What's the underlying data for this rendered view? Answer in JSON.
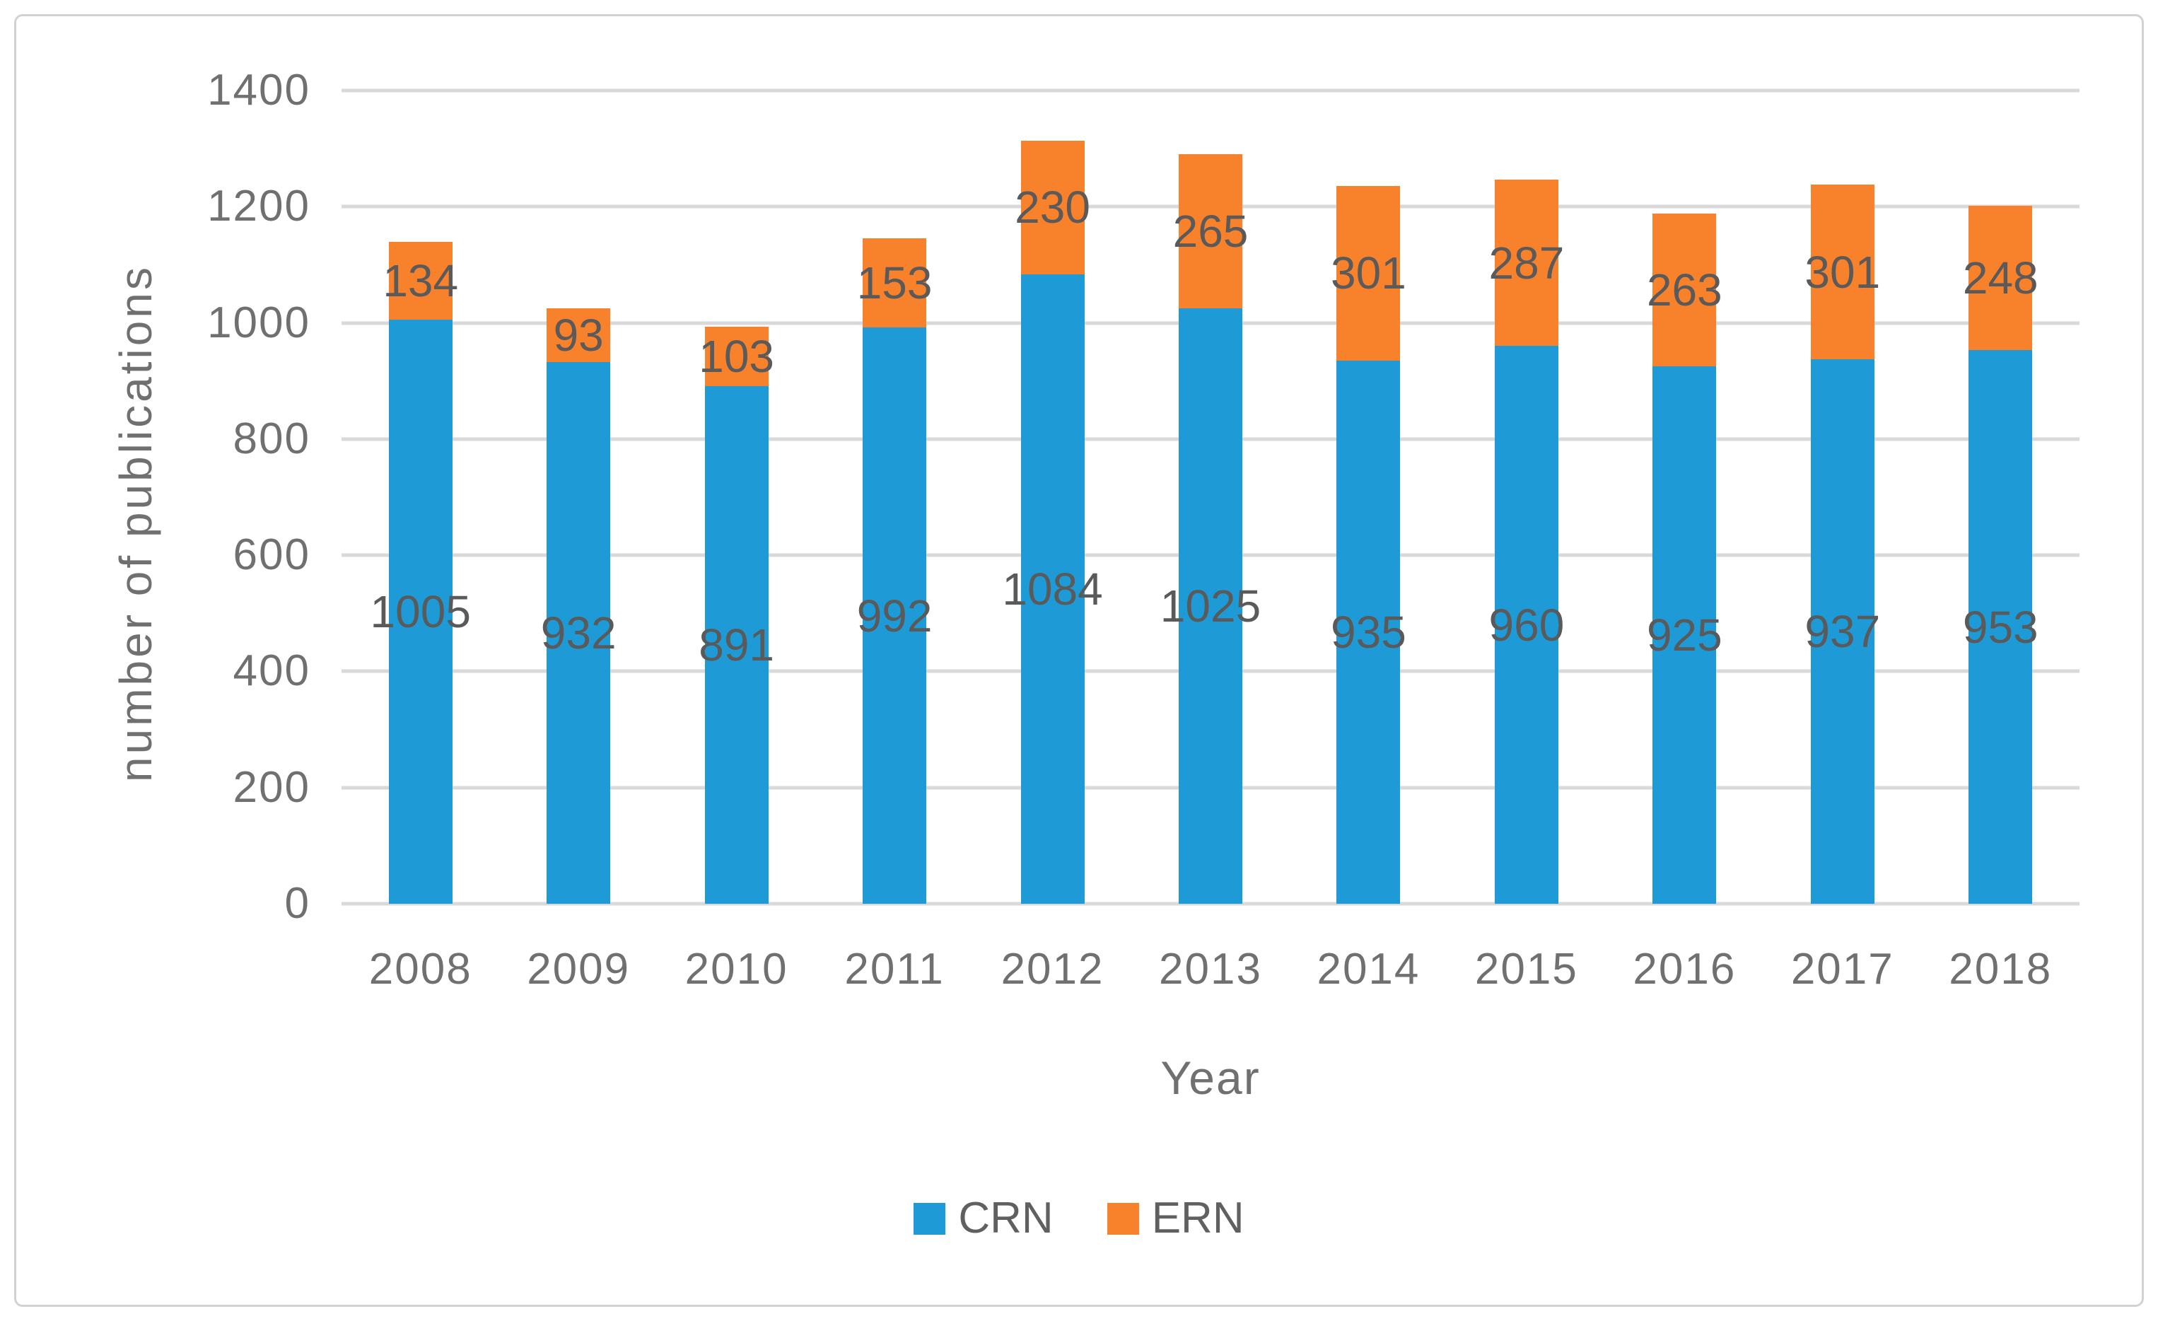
{
  "chart_data": {
    "type": "bar",
    "stacked": true,
    "title": "",
    "xlabel": "Year",
    "ylabel": "number of publications",
    "categories": [
      "2008",
      "2009",
      "2010",
      "2011",
      "2012",
      "2013",
      "2014",
      "2015",
      "2016",
      "2017",
      "2018"
    ],
    "series": [
      {
        "name": "CRN",
        "color": "#1E9BD7",
        "values": [
          1005,
          932,
          891,
          992,
          1084,
          1025,
          935,
          960,
          925,
          937,
          953
        ]
      },
      {
        "name": "ERN",
        "color": "#F8812C",
        "values": [
          134,
          93,
          103,
          153,
          230,
          265,
          301,
          287,
          263,
          301,
          248
        ]
      }
    ],
    "ylim": [
      0,
      1400
    ],
    "ytick_step": 200,
    "grid": "horizontal",
    "legend_position": "bottom",
    "data_labels": "centered-in-segment"
  },
  "colors": {
    "gridline": "#d9d9d9",
    "axis_text": "#707070",
    "data_label_text": "#5a5a5a",
    "frame_border": "#d2d2d2",
    "background": "#ffffff"
  }
}
